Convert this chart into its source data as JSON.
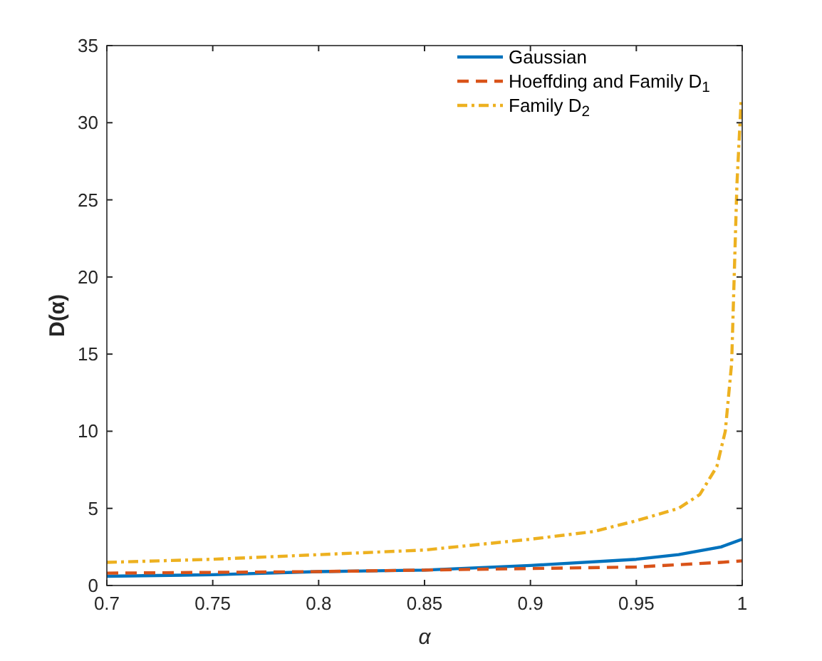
{
  "chart_data": {
    "type": "line",
    "xlabel": "α",
    "ylabel": "D(α)",
    "xlim": [
      0.7,
      1
    ],
    "ylim": [
      0,
      35
    ],
    "xticks": [
      0.7,
      0.75,
      0.8,
      0.85,
      0.9,
      0.95,
      1
    ],
    "yticks": [
      0,
      5,
      10,
      15,
      20,
      25,
      30,
      35
    ],
    "grid": false,
    "legend": "top right",
    "series": [
      {
        "name": "Gaussian",
        "color": "#0072bd",
        "line_style": "solid",
        "x": [
          0.7,
          0.75,
          0.8,
          0.85,
          0.9,
          0.95,
          0.97,
          0.99,
          1
        ],
        "values": [
          0.6,
          0.7,
          0.9,
          1.0,
          1.3,
          1.7,
          2.0,
          2.5,
          3.0
        ]
      },
      {
        "name": "Hoeffding and Family D$_{1}$",
        "color": "#d95319",
        "line_style": "dashed",
        "x": [
          0.7,
          0.8,
          0.85,
          0.9,
          0.95,
          0.99,
          1
        ],
        "values": [
          0.8,
          0.9,
          1.0,
          1.1,
          1.2,
          1.5,
          1.6
        ]
      },
      {
        "name": "Family D$_{2}$",
        "color": "#edb120",
        "line_style": "dashdot",
        "x": [
          0.7,
          0.75,
          0.8,
          0.85,
          0.9,
          0.93,
          0.95,
          0.97,
          0.98,
          0.988,
          0.992,
          0.995,
          0.9975,
          0.9995
        ],
        "values": [
          1.5,
          1.7,
          2.0,
          2.3,
          3.0,
          3.5,
          4.2,
          5.0,
          5.9,
          7.7,
          10,
          14.4,
          26,
          31.5
        ]
      }
    ]
  }
}
